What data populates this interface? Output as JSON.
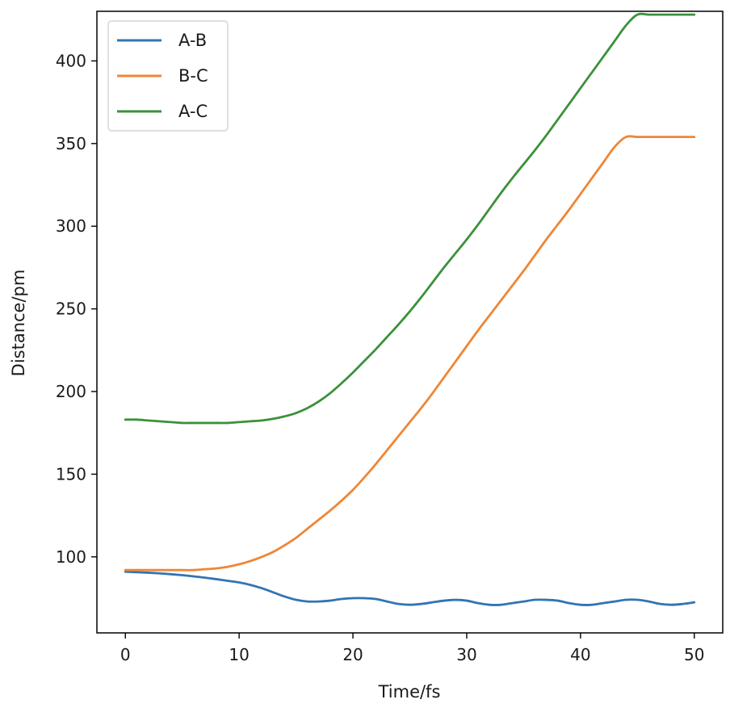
{
  "chart_data": {
    "type": "line",
    "title": "",
    "xlabel": "Time/fs",
    "ylabel": "Distance/pm",
    "xlim": [
      -2.5,
      52.5
    ],
    "ylim": [
      54,
      430
    ],
    "xticks": [
      0,
      10,
      20,
      30,
      40,
      50
    ],
    "yticks": [
      100,
      150,
      200,
      250,
      300,
      350,
      400
    ],
    "grid": false,
    "legend_position": "top-left",
    "x": [
      0,
      1,
      2,
      3,
      4,
      5,
      6,
      7,
      8,
      9,
      10,
      11,
      12,
      13,
      14,
      15,
      16,
      17,
      18,
      19,
      20,
      21,
      22,
      23,
      24,
      25,
      26,
      27,
      28,
      29,
      30,
      31,
      32,
      33,
      34,
      35,
      36,
      37,
      38,
      39,
      40,
      41,
      42,
      43,
      44,
      45,
      46,
      47,
      48,
      49,
      50
    ],
    "series": [
      {
        "name": "A-B",
        "color": "#3274b3",
        "values": [
          91,
          90.7,
          90.4,
          90,
          89.5,
          88.9,
          88.2,
          87.4,
          86.5,
          85.5,
          84.5,
          83,
          81,
          78.5,
          76,
          74,
          73,
          73,
          73.5,
          74.5,
          75,
          75,
          74.5,
          73,
          71.5,
          71,
          71.5,
          72.5,
          73.5,
          74,
          73.5,
          72,
          71,
          71,
          72,
          73,
          74,
          74,
          73.5,
          72,
          71,
          71,
          72,
          73,
          74,
          74,
          73,
          71.5,
          71,
          71.5,
          72.5
        ]
      },
      {
        "name": "B-C",
        "color": "#ef8636",
        "values": [
          92,
          92,
          92,
          92,
          92,
          92,
          92,
          92.5,
          93,
          94,
          95.5,
          97.5,
          100,
          103,
          107,
          111.5,
          117,
          122.5,
          128,
          134,
          140.5,
          148,
          156,
          164.5,
          173,
          181.5,
          190,
          199,
          208.5,
          218,
          227.5,
          237,
          246,
          255,
          264,
          273,
          282.5,
          292,
          301,
          310,
          319.5,
          329,
          338.5,
          348,
          354,
          354,
          354,
          354,
          354,
          354,
          354
        ]
      },
      {
        "name": "A-C",
        "color": "#3b913b",
        "values": [
          183,
          183,
          182.5,
          182,
          181.5,
          181,
          181,
          181,
          181,
          181,
          181.5,
          182,
          182.5,
          183.5,
          185,
          187,
          190,
          194,
          199,
          205,
          211.5,
          218.5,
          225.5,
          233,
          240.5,
          248.5,
          257,
          266,
          275,
          283.5,
          292,
          301,
          310.5,
          320,
          329,
          337.5,
          346,
          355,
          364.5,
          374,
          383.5,
          393,
          402.5,
          412,
          421.5,
          428,
          428,
          428,
          428,
          428,
          428
        ]
      }
    ]
  }
}
